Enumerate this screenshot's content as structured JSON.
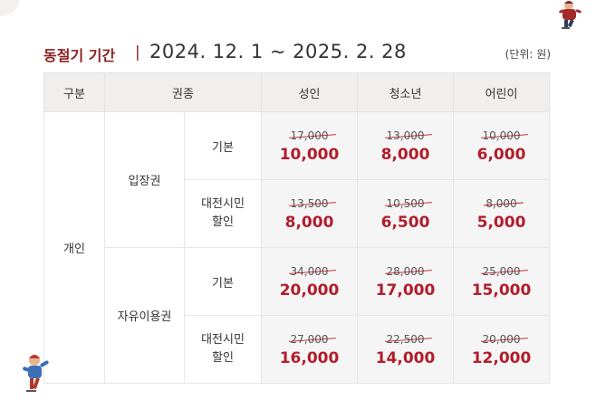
{
  "header": {
    "season_label": "동절기 기간",
    "divider": "|",
    "dates": "2024. 12. 1 ~ 2025. 2. 28",
    "unit_note": "(단위: 원)"
  },
  "table": {
    "headers": {
      "category": "구분",
      "ticket_type": "권종",
      "adult": "성인",
      "youth": "청소년",
      "child": "어린이"
    },
    "group": "개인",
    "sections": [
      {
        "name": "입장권",
        "rows": [
          {
            "type_line1": "기본",
            "type_line2": "",
            "adult_orig": "17,000",
            "adult_price": "10,000",
            "youth_orig": "13,000",
            "youth_price": "8,000",
            "child_orig": "10,000",
            "child_price": "6,000"
          },
          {
            "type_line1": "대전시민",
            "type_line2": "할인",
            "adult_orig": "13,500",
            "adult_price": "8,000",
            "youth_orig": "10,500",
            "youth_price": "6,500",
            "child_orig": "8,000",
            "child_price": "5,000"
          }
        ]
      },
      {
        "name": "자유이용권",
        "rows": [
          {
            "type_line1": "기본",
            "type_line2": "",
            "adult_orig": "34,000",
            "adult_price": "20,000",
            "youth_orig": "28,000",
            "youth_price": "17,000",
            "child_orig": "25,000",
            "child_price": "15,000"
          },
          {
            "type_line1": "대전시민",
            "type_line2": "할인",
            "adult_orig": "27,000",
            "adult_price": "16,000",
            "youth_orig": "22,500",
            "youth_price": "14,000",
            "child_orig": "20,000",
            "child_price": "12,000"
          }
        ]
      }
    ]
  },
  "colors": {
    "accent": "#b11d2b",
    "title": "#8b1e1e",
    "header_bg": "#f0efee",
    "price_bg": "#f5f5f5"
  },
  "decorations": {
    "top_right": "skater-character-icon",
    "bottom_left": "skater-character-icon"
  }
}
